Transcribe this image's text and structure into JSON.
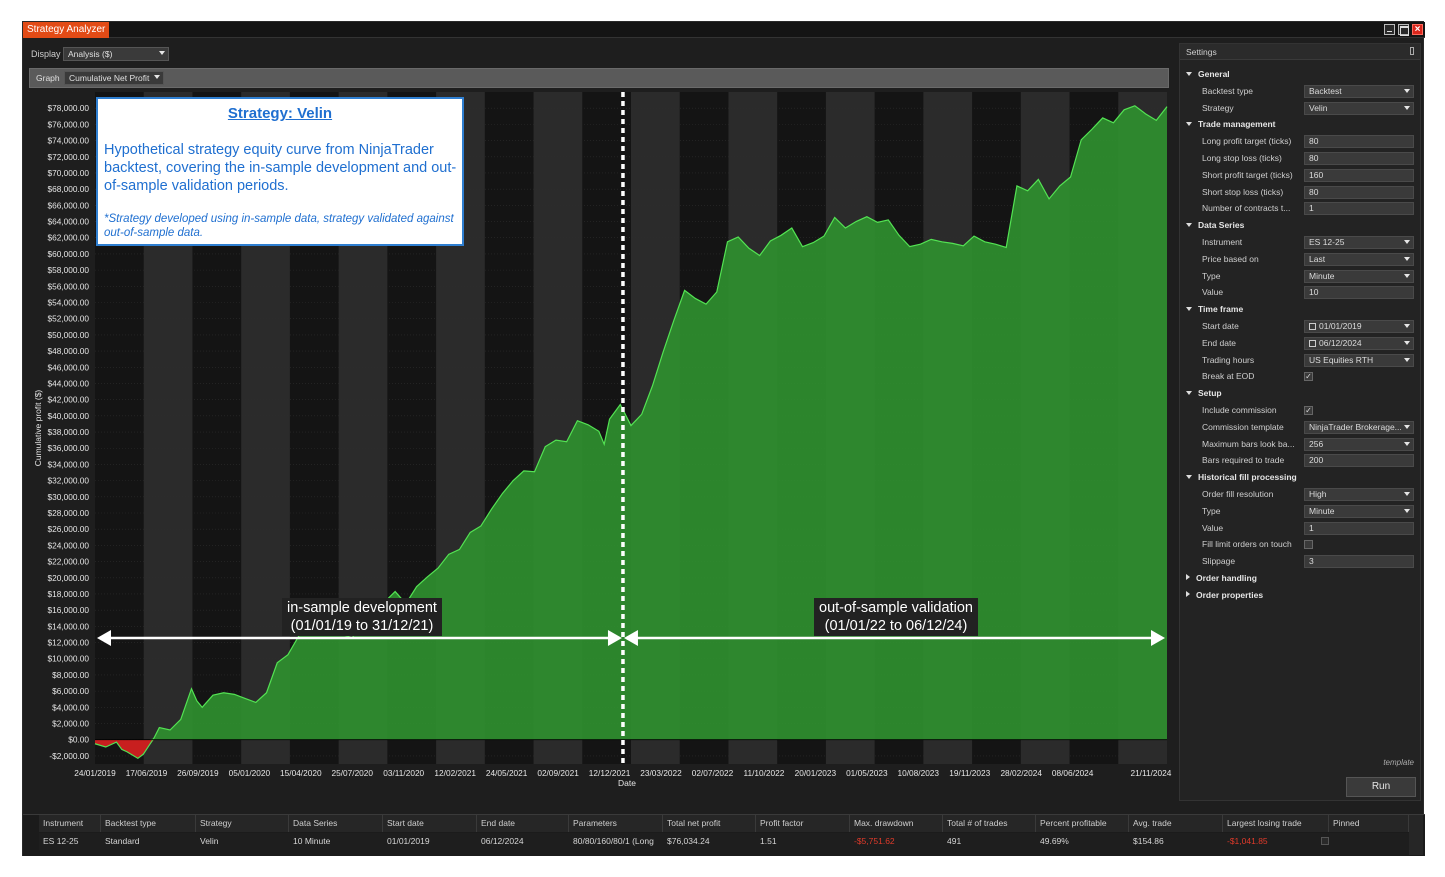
{
  "window": {
    "title": "Strategy Analyzer"
  },
  "toolbar": {
    "display_label": "Display",
    "display_value": "Analysis ($)",
    "graph_label": "Graph",
    "graph_value": "Cumulative Net Profit"
  },
  "chart_data": {
    "type": "area",
    "title": "",
    "ylabel": "Cumulative profit ($)",
    "xlabel": "Date",
    "ylim": [
      -3000,
      80000
    ],
    "y_ticks": [
      -2000,
      0,
      2000,
      4000,
      6000,
      8000,
      10000,
      12000,
      14000,
      16000,
      18000,
      20000,
      22000,
      24000,
      26000,
      28000,
      30000,
      32000,
      34000,
      36000,
      38000,
      40000,
      42000,
      44000,
      46000,
      48000,
      50000,
      52000,
      54000,
      56000,
      58000,
      60000,
      62000,
      64000,
      66000,
      68000,
      70000,
      72000,
      74000,
      76000,
      78000
    ],
    "y_tick_labels": [
      "-$2,000.00",
      "$0.00",
      "$2,000.00",
      "$4,000.00",
      "$6,000.00",
      "$8,000.00",
      "$10,000.00",
      "$12,000.00",
      "$14,000.00",
      "$16,000.00",
      "$18,000.00",
      "$20,000.00",
      "$22,000.00",
      "$24,000.00",
      "$26,000.00",
      "$28,000.00",
      "$30,000.00",
      "$32,000.00",
      "$34,000.00",
      "$36,000.00",
      "$38,000.00",
      "$40,000.00",
      "$42,000.00",
      "$44,000.00",
      "$46,000.00",
      "$48,000.00",
      "$50,000.00",
      "$52,000.00",
      "$54,000.00",
      "$56,000.00",
      "$58,000.00",
      "$60,000.00",
      "$62,000.00",
      "$64,000.00",
      "$66,000.00",
      "$68,000.00",
      "$70,000.00",
      "$72,000.00",
      "$74,000.00",
      "$76,000.00",
      "$78,000.00"
    ],
    "x_tick_labels": [
      "24/01/2019",
      "17/06/2019",
      "26/09/2019",
      "05/01/2020",
      "15/04/2020",
      "25/07/2020",
      "03/11/2020",
      "12/02/2021",
      "24/05/2021",
      "02/09/2021",
      "12/12/2021",
      "23/03/2022",
      "02/07/2022",
      "11/10/2022",
      "20/01/2023",
      "01/05/2023",
      "10/08/2023",
      "19/11/2023",
      "28/02/2024",
      "08/06/2024",
      "21/11/2024"
    ],
    "x_tick_positions": [
      0,
      0.048,
      0.096,
      0.144,
      0.192,
      0.24,
      0.288,
      0.336,
      0.384,
      0.432,
      0.48,
      0.528,
      0.576,
      0.624,
      0.672,
      0.72,
      0.768,
      0.816,
      0.864,
      0.912,
      0.985
    ],
    "series": [
      {
        "x": [
          0,
          0.01,
          0.02,
          0.025,
          0.03,
          0.04,
          0.045,
          0.05,
          0.055,
          0.06,
          0.07,
          0.08,
          0.09,
          0.095,
          0.1,
          0.11,
          0.12,
          0.13,
          0.14,
          0.15,
          0.16,
          0.17,
          0.18,
          0.19,
          0.2,
          0.21,
          0.22,
          0.23,
          0.24,
          0.25,
          0.26,
          0.27,
          0.28,
          0.29,
          0.3,
          0.31,
          0.32,
          0.33,
          0.34,
          0.35,
          0.36,
          0.37,
          0.38,
          0.39,
          0.4,
          0.41,
          0.42,
          0.43,
          0.44,
          0.45,
          0.46,
          0.47,
          0.475,
          0.48,
          0.49,
          0.5,
          0.51,
          0.52,
          0.53,
          0.54,
          0.55,
          0.56,
          0.57,
          0.58,
          0.59,
          0.6,
          0.61,
          0.62,
          0.63,
          0.64,
          0.65,
          0.66,
          0.67,
          0.68,
          0.69,
          0.7,
          0.71,
          0.72,
          0.73,
          0.74,
          0.75,
          0.76,
          0.77,
          0.78,
          0.79,
          0.8,
          0.81,
          0.82,
          0.83,
          0.84,
          0.85,
          0.86,
          0.87,
          0.88,
          0.89,
          0.9,
          0.91,
          0.92,
          0.93,
          0.94,
          0.95,
          0.96,
          0.97,
          0.98,
          0.99,
          1.0
        ],
        "values": [
          -500,
          -900,
          -300,
          -1200,
          -1500,
          -2300,
          -1800,
          -800,
          200,
          1500,
          1200,
          2500,
          6300,
          4800,
          4000,
          5500,
          5800,
          5600,
          5100,
          4600,
          5800,
          9500,
          10500,
          12800,
          14200,
          13500,
          13800,
          13000,
          12600,
          14600,
          16200,
          17000,
          18300,
          16800,
          18900,
          20100,
          21200,
          22900,
          23500,
          25600,
          26400,
          28500,
          30400,
          32000,
          33200,
          33100,
          36200,
          37000,
          36800,
          39400,
          38900,
          38100,
          36500,
          39600,
          41400,
          38800,
          40200,
          43700,
          47900,
          51800,
          55500,
          54500,
          53800,
          55300,
          61500,
          62100,
          60700,
          59800,
          61600,
          62300,
          63200,
          60900,
          61400,
          62200,
          64500,
          63200,
          64000,
          64600,
          63900,
          64200,
          62300,
          60900,
          61200,
          61800,
          61500,
          61300,
          61000,
          62200,
          61500,
          61200,
          60800,
          68400,
          67800,
          69200,
          66800,
          68400,
          69500,
          74100,
          75400,
          76800,
          76200,
          77800,
          78300,
          77300,
          76500,
          78200
        ]
      }
    ]
  },
  "chart_labels": {
    "in_sample": [
      "in-sample development",
      "(01/01/19 to 31/12/21)"
    ],
    "out_sample": [
      "out-of-sample validation",
      "(01/01/22 to 06/12/24)"
    ]
  },
  "annotation": {
    "title": "Strategy: Velin",
    "body": "Hypothetical strategy equity curve from NinjaTrader backtest, covering the in-sample development and out-of-sample validation periods.",
    "note": "*Strategy developed using in-sample data, strategy validated against out-of-sample data."
  },
  "settings": {
    "header": "Settings",
    "template_link": "template",
    "run_label": "Run",
    "rows": [
      {
        "type": "section",
        "label": "General"
      },
      {
        "type": "combo",
        "label": "Backtest type",
        "value": "Backtest"
      },
      {
        "type": "combo",
        "label": "Strategy",
        "value": "Velin"
      },
      {
        "type": "section",
        "label": "Trade management"
      },
      {
        "type": "text",
        "label": "Long profit target (ticks)",
        "value": "80"
      },
      {
        "type": "text",
        "label": "Long stop loss (ticks)",
        "value": "80"
      },
      {
        "type": "text",
        "label": "Short profit target (ticks)",
        "value": "160"
      },
      {
        "type": "text",
        "label": "Short stop loss (ticks)",
        "value": "80"
      },
      {
        "type": "text",
        "label": "Number of contracts t...",
        "value": "1"
      },
      {
        "type": "section",
        "label": "Data Series"
      },
      {
        "type": "combo",
        "label": "Instrument",
        "value": "ES 12-25"
      },
      {
        "type": "combo",
        "label": "Price based on",
        "value": "Last"
      },
      {
        "type": "combo",
        "label": "Type",
        "value": "Minute"
      },
      {
        "type": "text",
        "label": "Value",
        "value": "10"
      },
      {
        "type": "section",
        "label": "Time frame"
      },
      {
        "type": "date",
        "label": "Start date",
        "value": "01/01/2019"
      },
      {
        "type": "date",
        "label": "End date",
        "value": "06/12/2024"
      },
      {
        "type": "combo",
        "label": "Trading hours",
        "value": "US Equities RTH"
      },
      {
        "type": "check",
        "label": "Break at EOD",
        "checked": true
      },
      {
        "type": "section",
        "label": "Setup"
      },
      {
        "type": "check",
        "label": "Include commission",
        "checked": true
      },
      {
        "type": "combo",
        "label": "Commission template",
        "value": "NinjaTrader Brokerage..."
      },
      {
        "type": "combo",
        "label": "Maximum bars look ba...",
        "value": "256"
      },
      {
        "type": "text",
        "label": "Bars required to trade",
        "value": "200"
      },
      {
        "type": "section",
        "label": "Historical fill processing"
      },
      {
        "type": "combo",
        "label": "Order fill resolution",
        "value": "High"
      },
      {
        "type": "combo",
        "label": "Type",
        "value": "Minute"
      },
      {
        "type": "text",
        "label": "Value",
        "value": "1"
      },
      {
        "type": "check",
        "label": "Fill limit orders on touch",
        "checked": false
      },
      {
        "type": "text",
        "label": "Slippage",
        "value": "3"
      },
      {
        "type": "section_collapsed",
        "label": "Order handling"
      },
      {
        "type": "section_collapsed",
        "label": "Order properties"
      }
    ]
  },
  "results": {
    "columns": [
      "Instrument",
      "Backtest type",
      "Strategy",
      "Data Series",
      "Start date",
      "End date",
      "Parameters",
      "Total net profit",
      "Profit factor",
      "Max. drawdown",
      "Total # of trades",
      "Percent profitable",
      "Avg. trade",
      "Largest losing trade",
      "Pinned"
    ],
    "row": [
      "ES 12-25",
      "Standard",
      "Velin",
      "10 Minute",
      "01/01/2019",
      "06/12/2024",
      "80/80/160/80/1 (Long",
      "$76,034.24",
      "1.51",
      "-$5,751.62",
      "491",
      "49.69%",
      "$154.86",
      "-$1,041.85",
      ""
    ],
    "negative_cols": [
      9,
      13
    ]
  }
}
